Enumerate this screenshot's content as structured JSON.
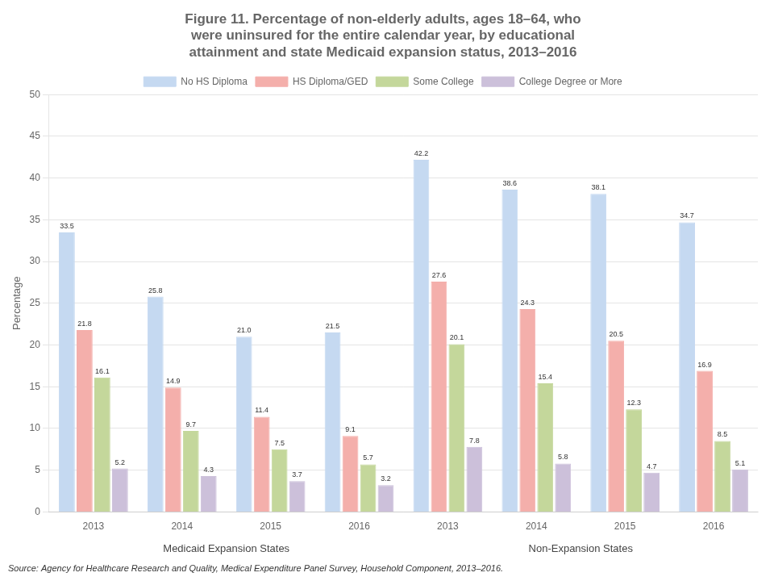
{
  "chart_data": {
    "type": "bar",
    "title": "Figure 11. Percentage of non-elderly adults, ages 18–64, who\nwere uninsured for the entire calendar year, by educational\nattainment and state Medicaid expansion status, 2013–2016",
    "ylabel": "Percentage",
    "categories": [
      "2013",
      "2014",
      "2015",
      "2016",
      "2013",
      "2014",
      "2015",
      "2016"
    ],
    "series": [
      {
        "name": "No HS Diploma",
        "color": "#C5D9F1",
        "values": [
          33.5,
          25.8,
          21.0,
          21.5,
          42.2,
          38.6,
          38.1,
          34.7
        ],
        "value_labels": [
          "33.5",
          "25.8",
          "21.0",
          "21.5",
          "42.2",
          "38.6",
          "38.1",
          "34.7"
        ]
      },
      {
        "name": "HS Diploma/GED",
        "color": "#F4AFAB",
        "values": [
          21.8,
          14.9,
          11.4,
          9.1,
          27.6,
          24.3,
          20.5,
          16.9
        ],
        "value_labels": [
          "21.8",
          "14.9",
          "11.4",
          "9.1",
          "27.6",
          "24.3",
          "20.5",
          "16.9"
        ]
      },
      {
        "name": "Some College",
        "color": "#C4D79B",
        "values": [
          16.1,
          9.7,
          7.5,
          5.7,
          20.1,
          15.4,
          12.3,
          8.5
        ],
        "value_labels": [
          "16.1",
          "9.7",
          "7.5",
          "5.7",
          "20.1",
          "15.4",
          "12.3",
          "8.5"
        ]
      },
      {
        "name": "College Degree or More",
        "color": "#CCC0DA",
        "values": [
          5.2,
          4.3,
          3.7,
          3.2,
          7.8,
          5.8,
          4.7,
          5.1
        ],
        "value_labels": [
          "5.2",
          "4.3",
          "3.7",
          "3.2",
          "7.8",
          "5.8",
          "4.7",
          "5.1"
        ]
      }
    ],
    "ylim": [
      0,
      50
    ],
    "yticks": [
      0,
      5,
      10,
      15,
      20,
      25,
      30,
      35,
      40,
      45,
      50
    ],
    "grid": true,
    "legend": "top",
    "data_labels": true,
    "annotations": [
      "Medicaid Expansion States",
      "Non-Expansion States"
    ],
    "source": "Source: Agency for Healthcare Research and Quality, Medical Expenditure Panel Survey, Household Component, 2013–2016."
  }
}
